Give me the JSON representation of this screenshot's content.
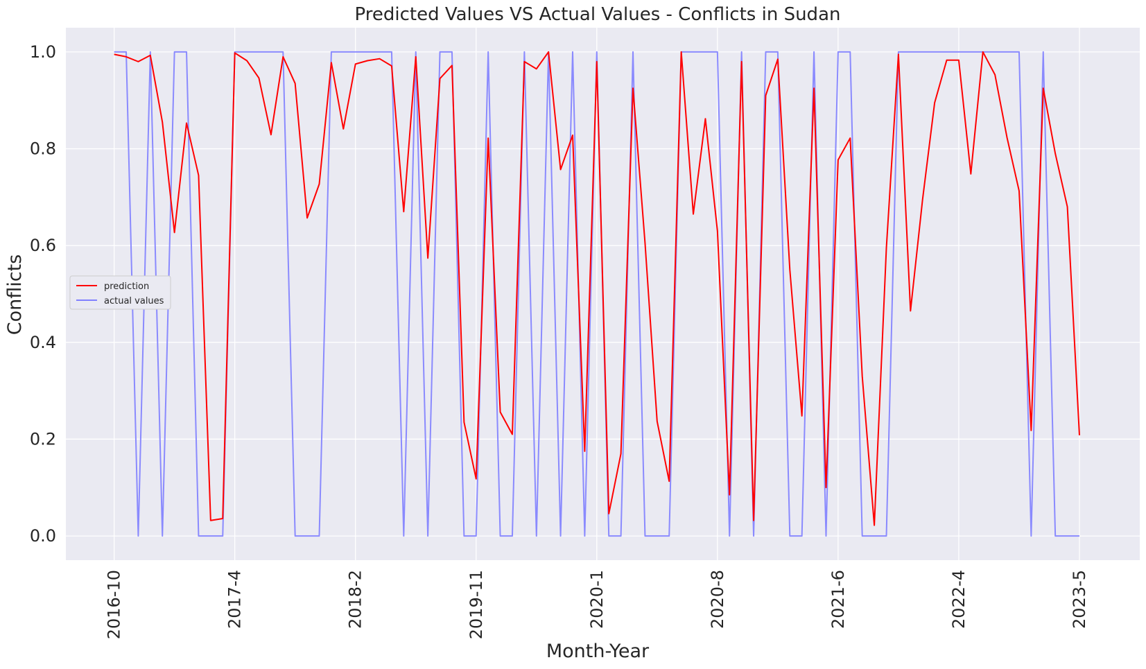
{
  "chart_data": {
    "type": "line",
    "title": "Predicted Values VS Actual Values - Conflicts in Sudan",
    "xlabel": "Month-Year",
    "ylabel": "Conflicts",
    "ylim": [
      -0.05,
      1.05
    ],
    "yticks": [
      0.0,
      0.2,
      0.4,
      0.6,
      0.8,
      1.0
    ],
    "ytick_labels": [
      "0.0",
      "0.2",
      "0.4",
      "0.6",
      "0.8",
      "1.0"
    ],
    "xlim": [
      -4,
      85
    ],
    "xticks": [
      0,
      10,
      20,
      30,
      40,
      50,
      60,
      70,
      80
    ],
    "xtick_labels": [
      "2016-10",
      "2017-4",
      "2018-2",
      "2019-11",
      "2020-1",
      "2020-8",
      "2021-6",
      "2022-4",
      "2023-5"
    ],
    "grid": true,
    "legend_position": "center-left",
    "background": "#eaeaf2",
    "series": [
      {
        "name": "prediction",
        "color": "#ff0000",
        "values": [
          0.995,
          0.99,
          0.98,
          0.993,
          0.855,
          0.627,
          0.853,
          0.745,
          0.032,
          0.036,
          0.998,
          0.982,
          0.946,
          0.829,
          0.99,
          0.935,
          0.657,
          0.727,
          0.978,
          0.841,
          0.975,
          0.982,
          0.986,
          0.971,
          0.67,
          0.99,
          0.574,
          0.945,
          0.972,
          0.235,
          0.118,
          0.822,
          0.256,
          0.21,
          0.98,
          0.965,
          1.0,
          0.757,
          0.828,
          0.175,
          0.98,
          0.046,
          0.17,
          0.925,
          0.605,
          0.237,
          0.113,
          1.0,
          0.665,
          0.862,
          0.63,
          0.085,
          0.98,
          0.032,
          0.91,
          0.985,
          0.55,
          0.248,
          0.925,
          0.1,
          0.777,
          0.822,
          0.33,
          0.022,
          0.595,
          0.995,
          0.465,
          0.695,
          0.895,
          0.983,
          0.983,
          0.748,
          1.0,
          0.953,
          0.823,
          0.713,
          0.218,
          0.925,
          0.79,
          0.68,
          0.208
        ]
      },
      {
        "name": "actual values",
        "color": "#8080ff",
        "values": [
          1,
          1,
          0,
          1,
          0,
          1,
          1,
          0,
          0,
          0,
          1,
          1,
          1,
          1,
          1,
          0,
          0,
          0,
          1,
          1,
          1,
          1,
          1,
          1,
          0,
          1,
          0,
          1,
          1,
          0,
          0,
          1,
          0,
          0,
          1,
          0,
          1,
          0,
          1,
          0,
          1,
          0,
          0,
          1,
          0,
          0,
          0,
          1,
          1,
          1,
          1,
          0,
          1,
          0,
          1,
          1,
          0,
          0,
          1,
          0,
          1,
          1,
          0,
          0,
          0,
          1,
          1,
          1,
          1,
          1,
          1,
          1,
          1,
          1,
          1,
          1,
          0,
          1,
          0,
          0,
          0
        ]
      }
    ]
  }
}
